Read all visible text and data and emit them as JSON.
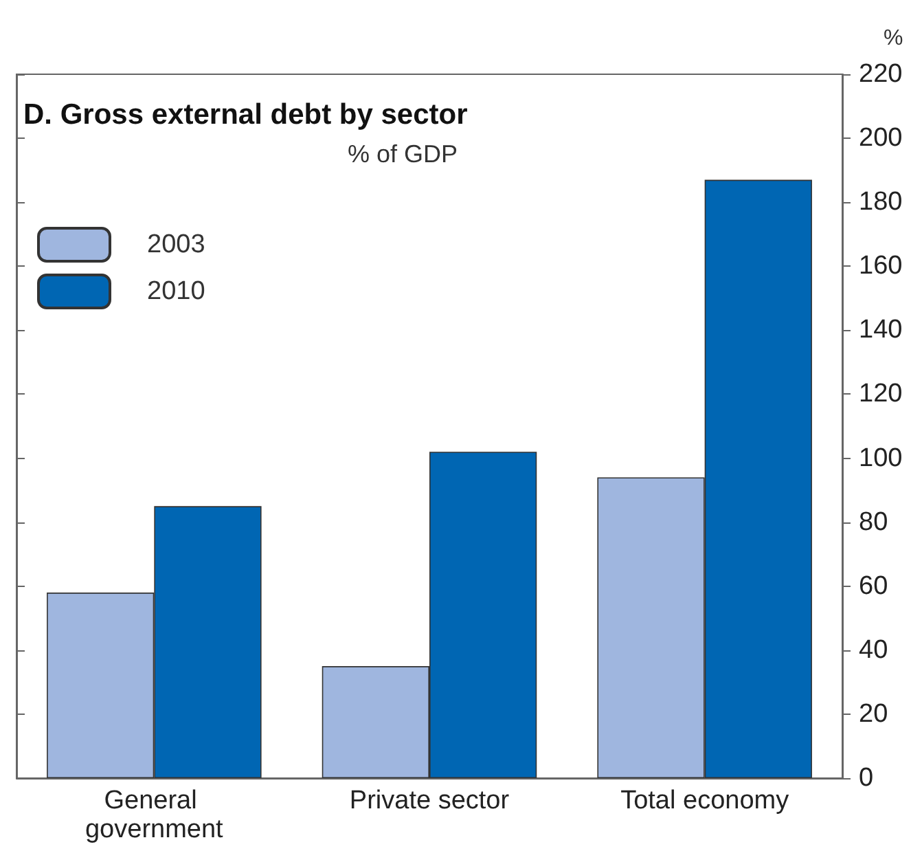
{
  "chart_data": {
    "type": "bar",
    "title": "D. Gross external debt by sector",
    "subtitle": "% of GDP",
    "ylabel": "%",
    "categories": [
      "General government",
      "Private sector",
      "Total economy"
    ],
    "series": [
      {
        "name": "2003",
        "color": "#9fb6df",
        "values": [
          58,
          35,
          94
        ]
      },
      {
        "name": "2010",
        "color": "#0066b3",
        "values": [
          85,
          102,
          187
        ]
      }
    ],
    "ylim": [
      0,
      220
    ],
    "yticks": [
      0,
      20,
      40,
      60,
      80,
      100,
      120,
      140,
      160,
      180,
      200,
      220
    ],
    "grid": false,
    "legend": "top left"
  }
}
